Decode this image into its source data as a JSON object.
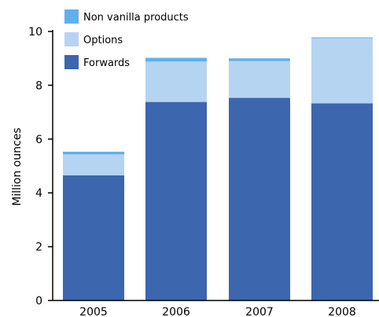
{
  "chart_data": {
    "type": "bar",
    "stacked": true,
    "categories": [
      "2005",
      "2006",
      "2007",
      "2008"
    ],
    "series": [
      {
        "name": "Forwards",
        "values": [
          4.65,
          7.38,
          7.53,
          7.33
        ],
        "color": "#3c66ae"
      },
      {
        "name": "Options",
        "values": [
          0.78,
          1.5,
          1.37,
          2.42
        ],
        "color": "#b5d4f2"
      },
      {
        "name": "Non vanilla products",
        "values": [
          0.1,
          0.14,
          0.1,
          0.03
        ],
        "color": "#5fb0ee"
      }
    ],
    "title": "",
    "xlabel": "",
    "ylabel": "Million ounces",
    "ylim": [
      0,
      10
    ],
    "yticks": [
      0,
      2,
      4,
      6,
      8,
      10
    ],
    "grid": false,
    "legend_position": "top-left",
    "legend_order": [
      "Non vanilla products",
      "Options",
      "Forwards"
    ]
  }
}
